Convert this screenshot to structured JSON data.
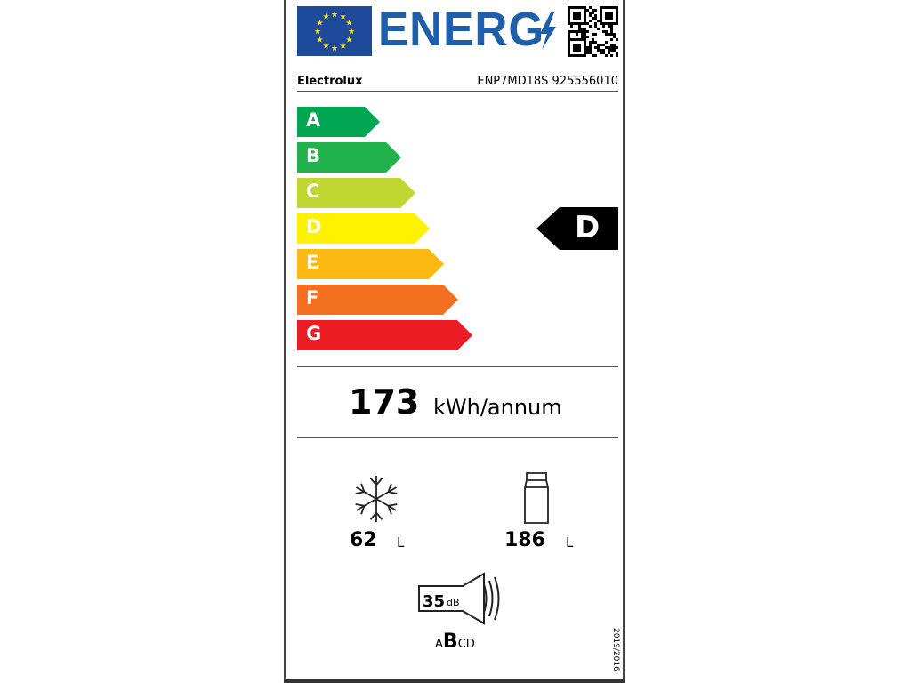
{
  "header": {
    "title": "ENERG",
    "brand": "Electrolux",
    "model": "ENP7MD18S 925556010"
  },
  "scale": {
    "classes": [
      {
        "letter": "A",
        "color": "#00a651"
      },
      {
        "letter": "B",
        "color": "#22b24c"
      },
      {
        "letter": "C",
        "color": "#bfd730"
      },
      {
        "letter": "D",
        "color": "#fff200"
      },
      {
        "letter": "E",
        "color": "#fdb913"
      },
      {
        "letter": "F",
        "color": "#f37021"
      },
      {
        "letter": "G",
        "color": "#ed1c24"
      }
    ],
    "rating": "D"
  },
  "consumption": {
    "value": "173",
    "unit": "kWh/annum"
  },
  "freezer": {
    "icon": "snowflake-icon",
    "value": "62",
    "unit": "L"
  },
  "fridge": {
    "icon": "bottle-icon",
    "value": "186",
    "unit": "L"
  },
  "noise": {
    "value": "35",
    "unit": "dB",
    "classes": [
      "A",
      "B",
      "C",
      "D"
    ],
    "selected": "B"
  },
  "regulation": "2019/2016",
  "colors": {
    "eu_blue": "#1e4a9c",
    "eu_star": "#ffe600",
    "title_blue": "#1f5ea8"
  }
}
